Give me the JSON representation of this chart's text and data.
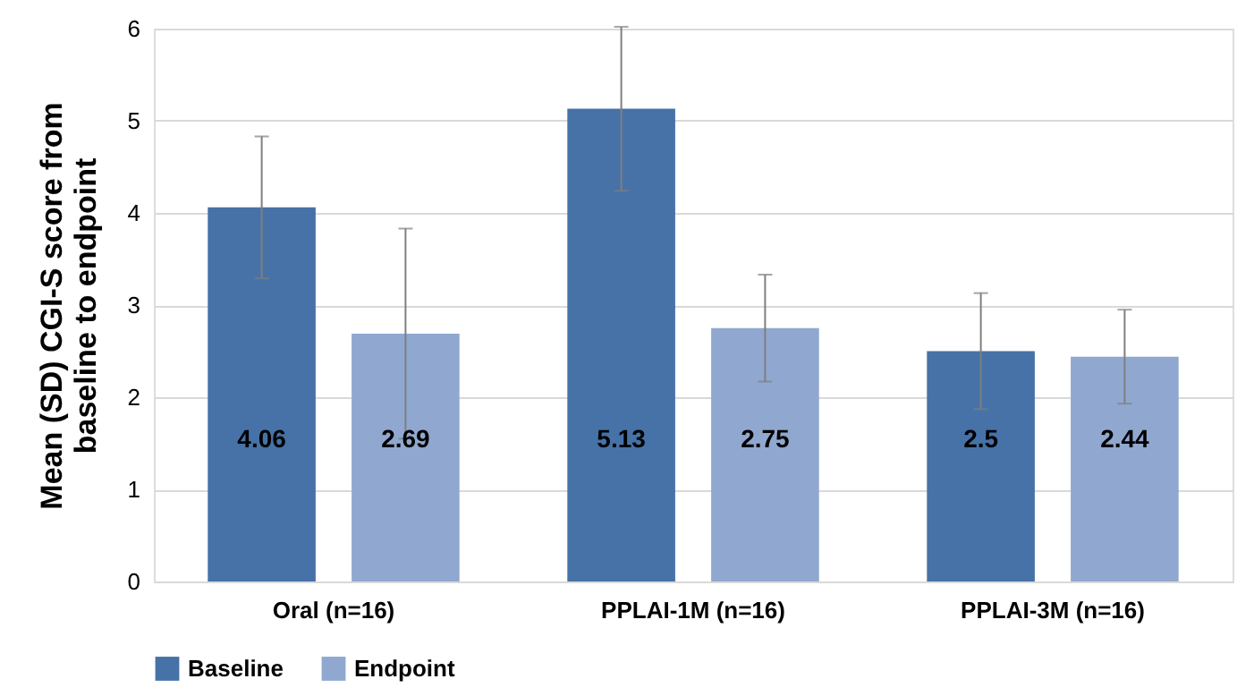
{
  "chart_data": {
    "type": "bar",
    "ylabel": "Mean (SD) CGI-S score from baseline to endpoint",
    "categories": [
      "Oral (n=16)",
      "PPLAI-1M (n=16)",
      "PPLAI-3M (n=16)"
    ],
    "series": [
      {
        "name": "Baseline",
        "color": "#4672a8",
        "values": [
          4.06,
          5.13,
          2.5
        ],
        "errors": [
          0.77,
          0.89,
          0.63
        ]
      },
      {
        "name": "Endpoint",
        "color": "#90a8d0",
        "values": [
          2.69,
          2.75,
          2.44
        ],
        "errors": [
          1.14,
          0.58,
          0.51
        ]
      }
    ],
    "ylim": [
      0,
      6
    ],
    "yticks": [
      0,
      1,
      2,
      3,
      4,
      5,
      6
    ],
    "grid": "y",
    "legend": "bottom",
    "data_labels": true
  }
}
